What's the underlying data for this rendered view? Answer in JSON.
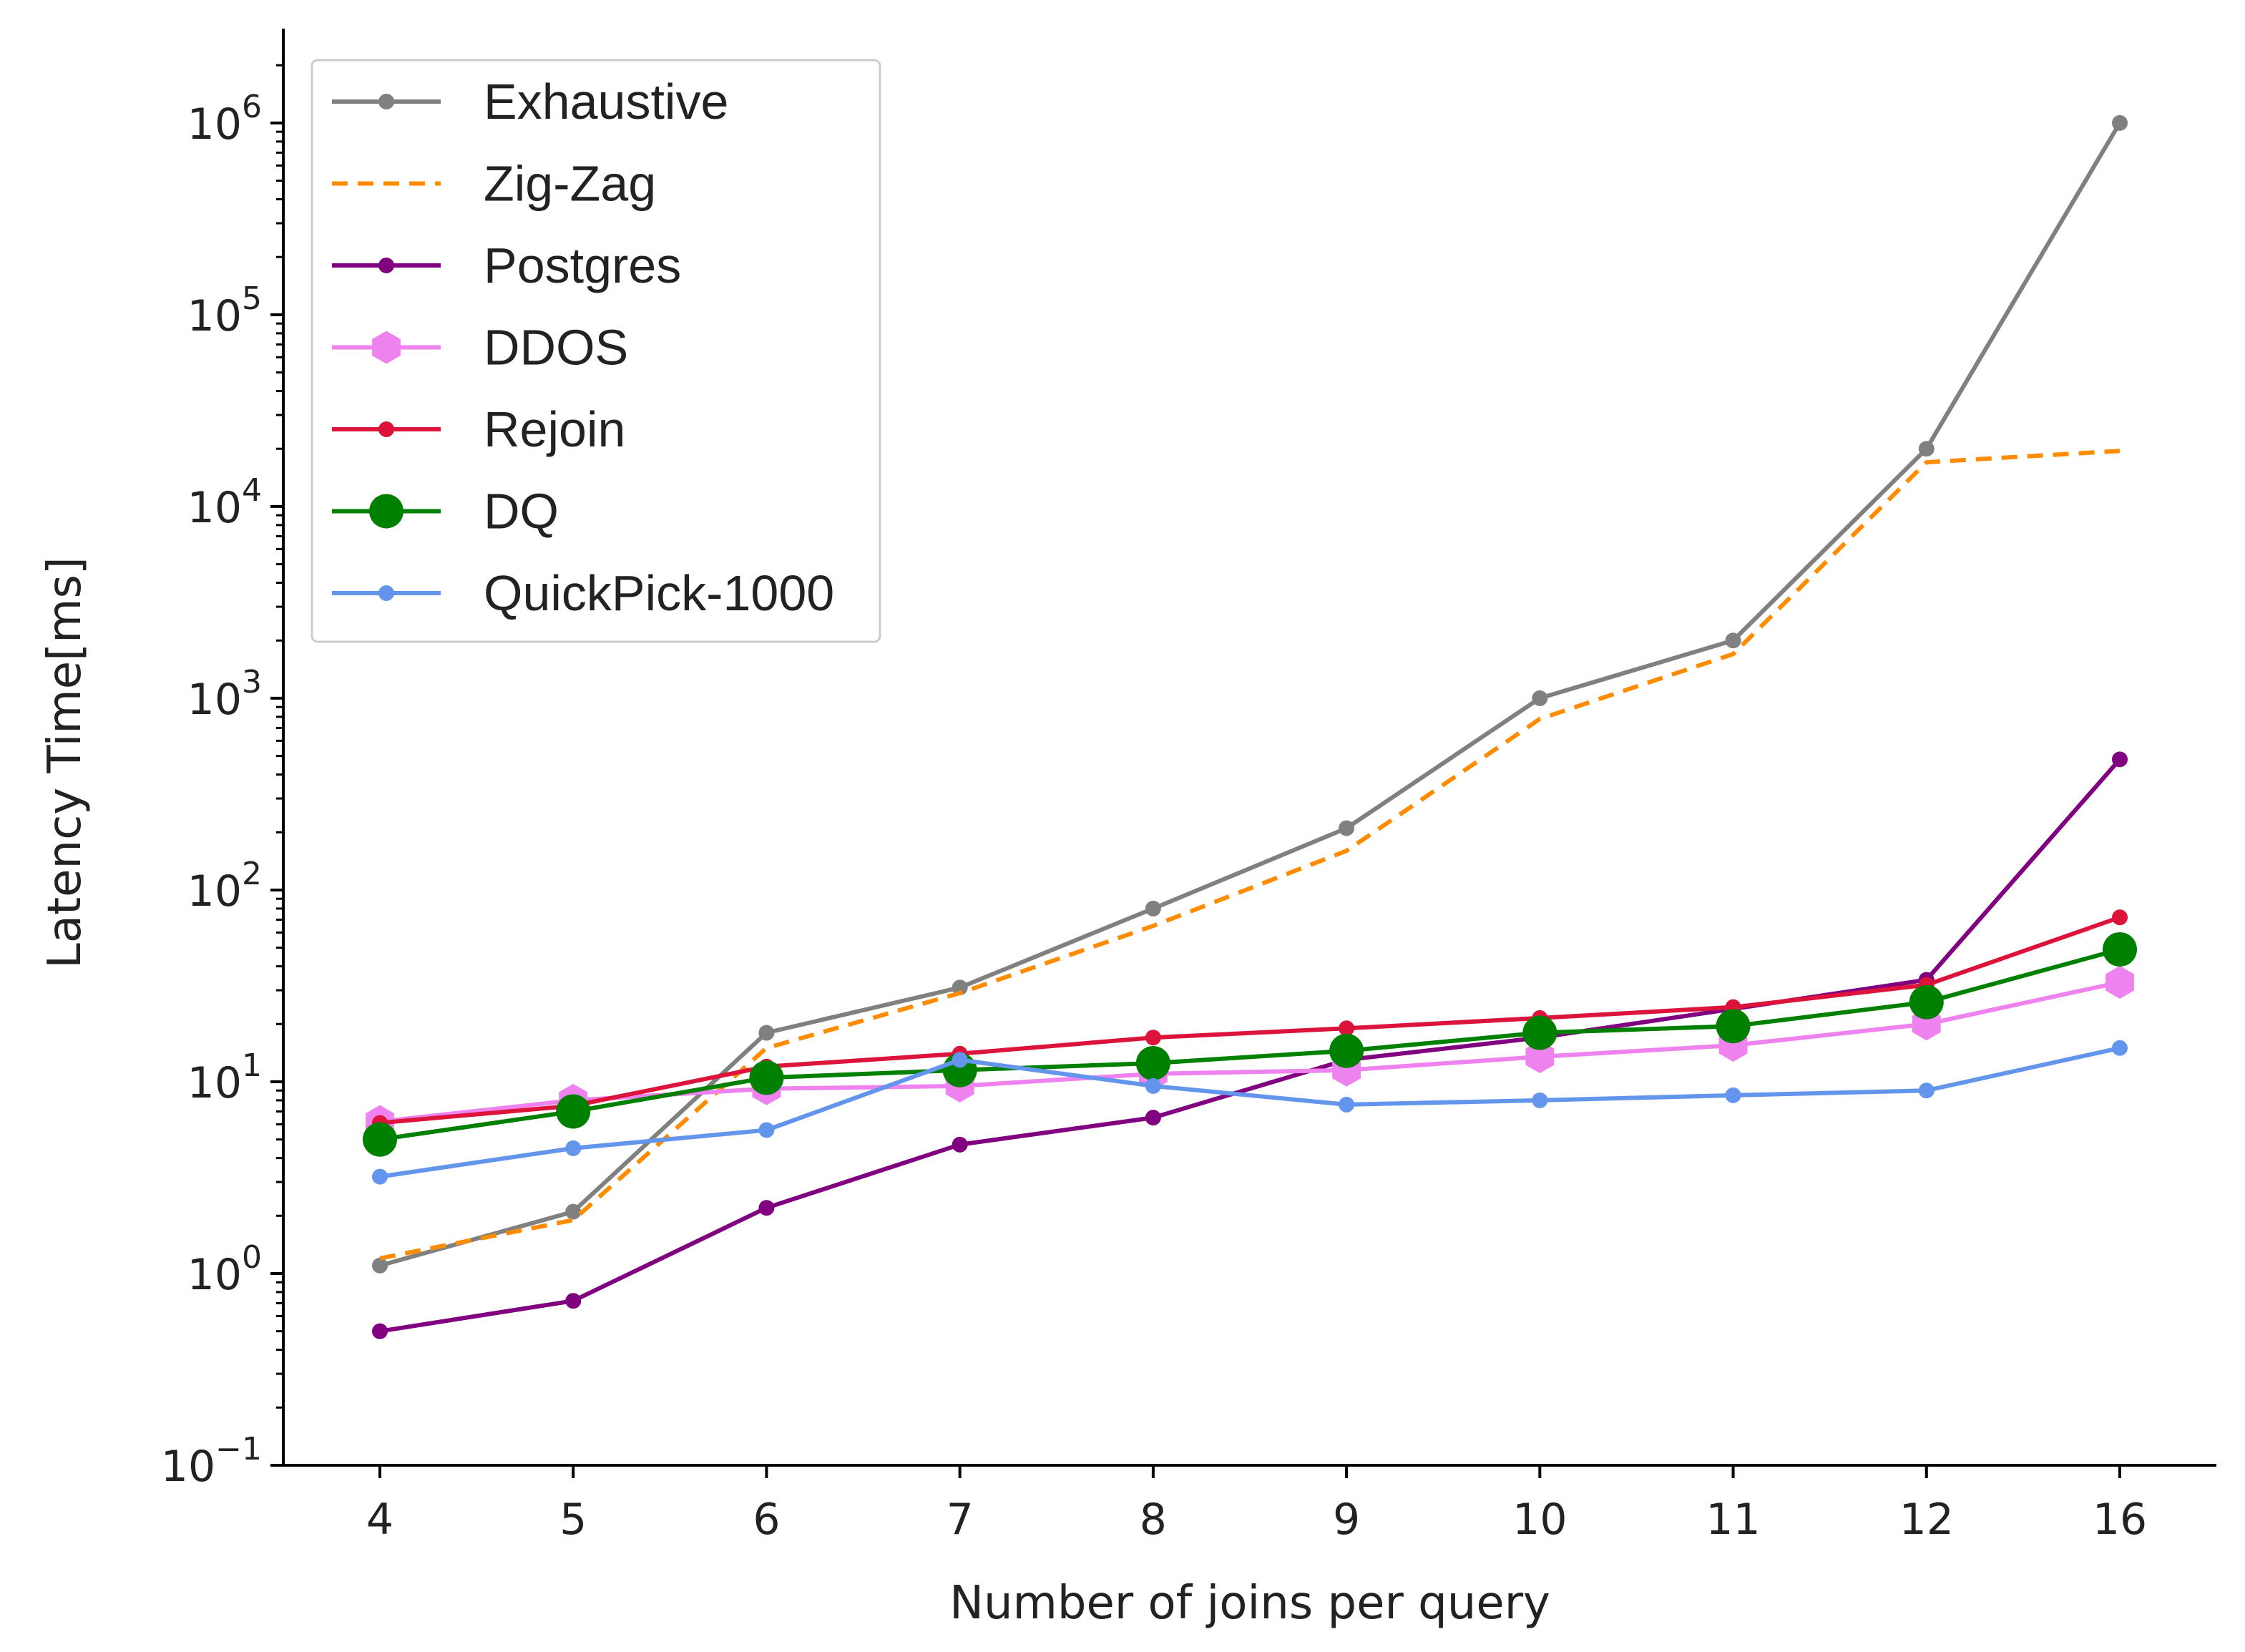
{
  "chart_data": {
    "type": "line",
    "title": "",
    "xlabel": "Number of joins per query",
    "ylabel": "Latency Time[ms]",
    "yscale": "log",
    "ylim": [
      0.1,
      3000000
    ],
    "categories": [
      "4",
      "5",
      "6",
      "7",
      "8",
      "9",
      "10",
      "11",
      "12",
      "16"
    ],
    "y_ticks": [
      {
        "value": 0.1,
        "base": "10",
        "exp": "−1"
      },
      {
        "value": 1,
        "base": "10",
        "exp": "0"
      },
      {
        "value": 10,
        "base": "10",
        "exp": "1"
      },
      {
        "value": 100,
        "base": "10",
        "exp": "2"
      },
      {
        "value": 1000,
        "base": "10",
        "exp": "3"
      },
      {
        "value": 10000,
        "base": "10",
        "exp": "4"
      },
      {
        "value": 100000,
        "base": "10",
        "exp": "5"
      },
      {
        "value": 1000000,
        "base": "10",
        "exp": "6"
      }
    ],
    "legend_position": "top-left",
    "grid": false,
    "series": [
      {
        "name": "Exhaustive",
        "color": "#808080",
        "style": "solid",
        "marker": "small",
        "values": [
          1.1,
          2.1,
          18,
          31,
          80,
          210,
          1000,
          2000,
          20000,
          1000000
        ]
      },
      {
        "name": "Zig-Zag",
        "color": "#ff8c00",
        "style": "dashed",
        "marker": "none",
        "values": [
          1.2,
          1.9,
          15,
          29,
          65,
          160,
          780,
          1700,
          17000,
          19500
        ]
      },
      {
        "name": "Postgres",
        "color": "#800080",
        "style": "solid",
        "marker": "small",
        "values": [
          0.5,
          0.72,
          2.2,
          4.7,
          6.5,
          13,
          17,
          24,
          34,
          480
        ]
      },
      {
        "name": "DDOS",
        "color": "#ee82ee",
        "style": "solid",
        "marker": "hexagon",
        "values": [
          6.2,
          8.0,
          9.2,
          9.5,
          11,
          11.5,
          13.5,
          15.5,
          20,
          33
        ]
      },
      {
        "name": "Rejoin",
        "color": "#dc143c",
        "style": "solid",
        "marker": "small",
        "values": [
          6.1,
          7.5,
          12,
          14,
          17,
          19,
          21.5,
          24.5,
          32,
          72
        ]
      },
      {
        "name": "DQ",
        "color": "#008000",
        "style": "solid",
        "marker": "large",
        "values": [
          5.0,
          7.0,
          10.5,
          11.5,
          12.5,
          14.5,
          18,
          19.5,
          26,
          49
        ]
      },
      {
        "name": "QuickPick-1000",
        "color": "#6495ed",
        "style": "solid",
        "marker": "small",
        "values": [
          3.2,
          4.5,
          5.6,
          13,
          9.5,
          7.6,
          8.0,
          8.5,
          9.0,
          15
        ]
      }
    ]
  }
}
